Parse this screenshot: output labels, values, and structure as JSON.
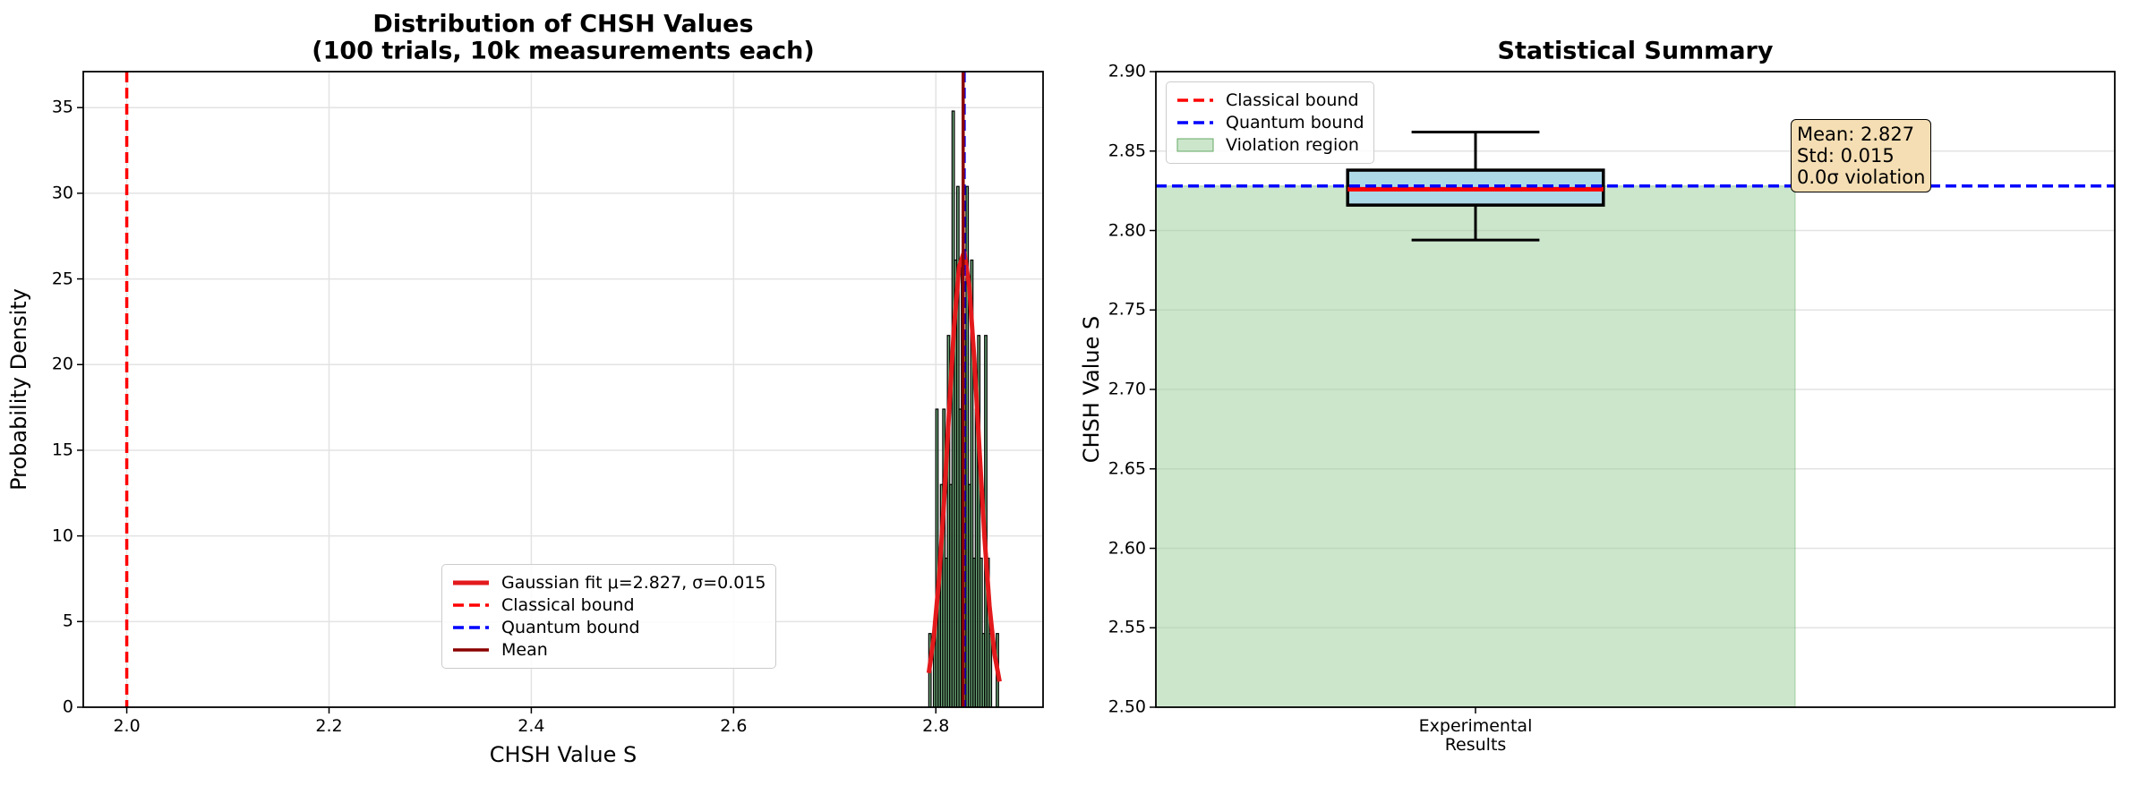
{
  "chart_data": [
    {
      "type": "histogram",
      "title": "Distribution of CHSH Values\n(100 trials, 10k measurements each)",
      "x_label": "CHSH Value S",
      "y_label": "Probability Density",
      "xlim": [
        1.957,
        2.906
      ],
      "ylim": [
        0,
        37.1
      ],
      "xticks": [
        {
          "value": 2.0,
          "label": "2.0"
        },
        2.2,
        2.4,
        2.6,
        2.8
      ],
      "yticks": [
        0,
        5,
        10,
        15,
        20,
        25,
        30,
        35
      ],
      "grid": true,
      "legend": "lower center",
      "color": "#3f8f4f",
      "bins": [
        2.793,
        2.7953,
        2.7976,
        2.7999,
        2.8022,
        2.8045,
        2.8068,
        2.8091,
        2.8114,
        2.8137,
        2.816,
        2.8183,
        2.8206,
        2.8229,
        2.8252,
        2.8275,
        2.8298,
        2.8321,
        2.8344,
        2.8367,
        2.839,
        2.8413,
        2.8436,
        2.8459,
        2.8482,
        2.8505,
        2.8528,
        2.8551,
        2.8574,
        2.8597,
        2.862
      ],
      "values": [
        4.3,
        0,
        4.3,
        17.4,
        8.7,
        13.0,
        17.4,
        8.7,
        21.7,
        13.0,
        34.8,
        26.1,
        30.4,
        17.4,
        26.1,
        21.7,
        30.4,
        13.0,
        26.1,
        8.7,
        17.4,
        21.7,
        8.7,
        4.3,
        21.7,
        8.7,
        4.3,
        0,
        0,
        4.3
      ],
      "series": [
        {
          "name": "Gaussian fit\nμ=2.827, σ=0.015",
          "color": "#e31a1c",
          "x": [
            2.793,
            2.798,
            2.803,
            2.808,
            2.813,
            2.818,
            2.823,
            2.828,
            2.833,
            2.838,
            2.843,
            2.848,
            2.853,
            2.858,
            2.863
          ],
          "values": [
            2.0,
            4.1,
            7.4,
            11.9,
            17.2,
            22.2,
            25.7,
            26.6,
            24.6,
            20.3,
            15.1,
            10.0,
            5.9,
            3.1,
            1.5
          ]
        }
      ],
      "vlines": [
        {
          "name": "Classical bound",
          "value": 2.0,
          "color": "#ff0000",
          "style": "dashed"
        },
        {
          "name": "Quantum bound",
          "value": 2.828,
          "color": "#0000ff",
          "style": "dashed"
        },
        {
          "name": "Mean",
          "value": 2.827,
          "color": "#8b0000",
          "style": "solid"
        }
      ]
    },
    {
      "type": "box",
      "title": "Statistical Summary",
      "y_label": "CHSH Value S",
      "xlim": [
        0.5,
        2.0
      ],
      "ylim": [
        2.5,
        2.9
      ],
      "yticks": [
        {
          "value": 2.5,
          "label": "2.50"
        },
        2.55,
        {
          "value": 2.6,
          "label": "2.60"
        },
        2.65,
        {
          "value": 2.7,
          "label": "2.70"
        },
        2.75,
        {
          "value": 2.8,
          "label": "2.80"
        },
        2.85,
        {
          "value": 2.9,
          "label": "2.90"
        }
      ],
      "grid": true,
      "legend": "upper left",
      "categories": [
        "Experimental\nResults"
      ],
      "box": {
        "whisker_low": 2.794,
        "q1": 2.816,
        "median": 2.826,
        "q3": 2.838,
        "whisker_high": 2.862,
        "color": "#add8e6",
        "median_color": "#ff0000"
      },
      "hlines": [
        {
          "name": "Classical bound",
          "value": 2.0,
          "color": "#ff0000",
          "style": "dashed"
        },
        {
          "name": "Quantum bound",
          "value": 2.828,
          "color": "#0000ff",
          "style": "dashed"
        }
      ],
      "region": {
        "name": "Violation region",
        "x": [
          0.5,
          1.5
        ],
        "y": [
          2.5,
          2.828
        ],
        "color": "#9acd9a"
      },
      "annotation": "Mean: 2.827\nStd: 0.015\n0.0σ violation"
    }
  ]
}
